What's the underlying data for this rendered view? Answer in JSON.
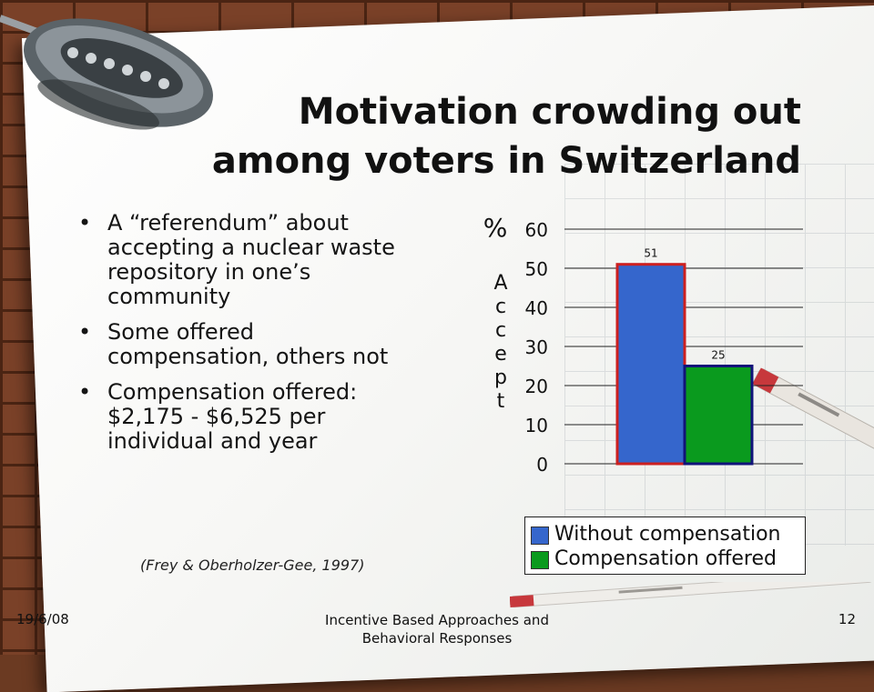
{
  "slide": {
    "title_line1": "Motivation crowding out",
    "title_line2": "among voters in Switzerland",
    "bullets": [
      "A “referendum” about accepting a nuclear waste repository in one’s community",
      "Some offered compensation, others not",
      "Compensation offered: $2,175 - $6,525 per individual and year"
    ],
    "citation": "(Frey & Oberholzer-Gee, 1997)"
  },
  "footer": {
    "date": "19/6/08",
    "course": "Incentive Based Approaches and Behavioral Responses",
    "page": "12"
  },
  "chart_data": {
    "type": "bar",
    "categories": [
      "Without compensation",
      "Compensation offered"
    ],
    "values": [
      51,
      25
    ],
    "data_labels": [
      "51",
      "25"
    ],
    "ylabel_top": "%",
    "ylabel": "Accept",
    "yticks": [
      "0",
      "10",
      "20",
      "30",
      "40",
      "50",
      "60"
    ],
    "ylim": [
      0,
      60
    ],
    "grid": true,
    "legend": {
      "placement": "bottom",
      "entries": [
        "Without compensation",
        "Compensation offered"
      ]
    },
    "colors": {
      "bar_without": "#3566cc",
      "bar_without_border": "#cc2020",
      "bar_offered": "#0a9a1e",
      "bar_offered_border": "#11137a"
    }
  }
}
